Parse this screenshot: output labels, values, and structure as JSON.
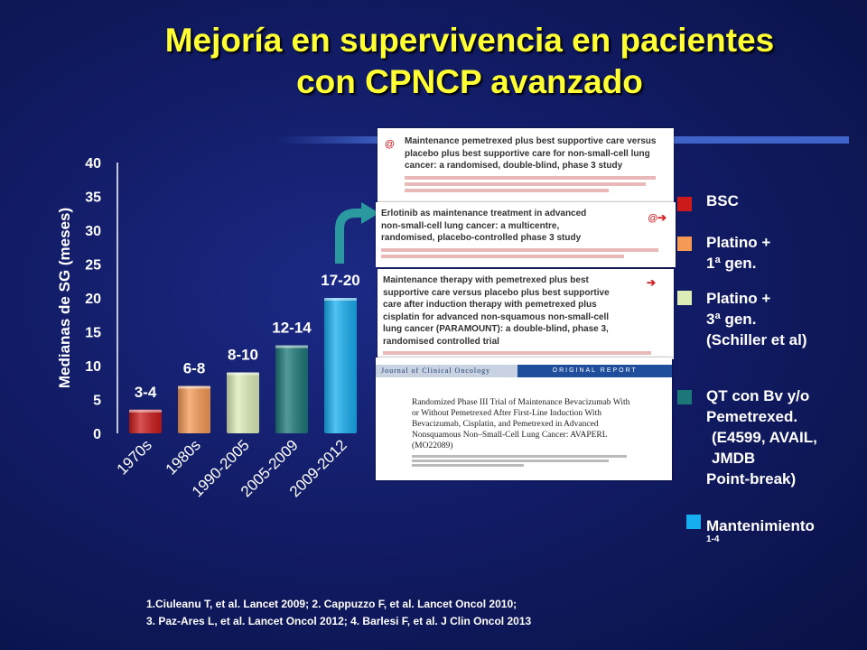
{
  "title": {
    "line1": "Mejoría en supervivencia en pacientes",
    "line2": "con CPNCP avanzado"
  },
  "chart_data": {
    "type": "bar",
    "categories": [
      "1970s",
      "1980s",
      "1990-2005",
      "2005-2009",
      "2009-2012"
    ],
    "values": [
      3.5,
      7,
      9,
      13,
      20
    ],
    "data_labels": [
      "3-4",
      "6-8",
      "8-10",
      "12-14",
      "17-20"
    ],
    "colors": [
      "#cc1a1a",
      "#f59a55",
      "#ddedb8",
      "#1c7878",
      "#17aef0"
    ],
    "ylabel": "Medianas de SG (meses)",
    "ylim": [
      0,
      40
    ],
    "yticks": [
      "0",
      "5",
      "10",
      "15",
      "20",
      "25",
      "30",
      "35",
      "40"
    ],
    "grid": false
  },
  "papers": {
    "p1": {
      "title": "Maintenance pemetrexed plus best supportive care versus placebo plus best supportive care for non-small-cell lung cancer: a randomised, double-blind, phase 3 study",
      "logo": "@"
    },
    "p2": {
      "title": "Erlotinib as maintenance treatment in advanced non-small-cell lung cancer: a multicentre, randomised, placebo-controlled phase 3 study"
    },
    "p3": {
      "title": "Maintenance therapy with pemetrexed plus best supportive care versus placebo plus best supportive care after induction therapy with pemetrexed plus cisplatin for advanced non-squamous non-small-cell lung cancer (PARAMOUNT): a double-blind, phase 3, randomised controlled trial"
    },
    "p4": {
      "journal": "Journal of Clinical Oncology",
      "section": "ORIGINAL REPORT",
      "title": "Randomized Phase III Trial of Maintenance Bevacizumab With or Without Pemetrexed After First-Line Induction With Bevacizumab, Cisplatin, and Pemetrexed in Advanced Nonsquamous Non–Small-Cell Lung Cancer: AVAPERL (MO22089)"
    }
  },
  "legend": {
    "bsc": "BSC",
    "platino1_a": "Platino +",
    "platino1_b": "1ª gen.",
    "platino3_a": "Platino +",
    "platino3_b": "3ª gen.",
    "platino3_c": "(Schiller et al)",
    "qt_a": "QT con Bv y/o",
    "qt_b": "Pemetrexed.",
    "qt_c": "(E4599, AVAIL,",
    "qt_d": "JMDB",
    "qt_e": "Point-break)",
    "mant": "Mantenimiento",
    "mant_sup": "1-4"
  },
  "legend_colors": {
    "bsc": "#cc1a1a",
    "platino1": "#f59a55",
    "platino3": "#ddedb8",
    "qt": "#1c7878",
    "mant": "#17aef0"
  },
  "refs": {
    "line1": "1.Ciuleanu T, et al. Lancet 2009; 2. Cappuzzo F, et al. Lancet Oncol 2010;",
    "line2": "3. Paz-Ares L, et al. Lancet Oncol 2012; 4. Barlesi F, et al. J Clin Oncol 2013"
  }
}
